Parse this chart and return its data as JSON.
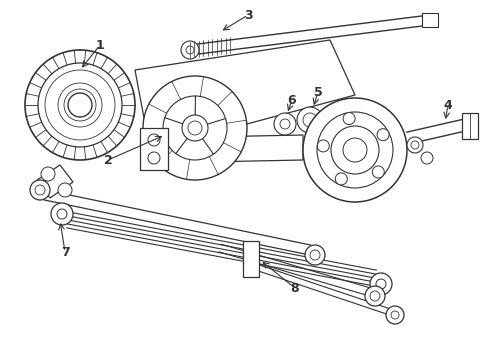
{
  "bg_color": "#ffffff",
  "line_color": "#333333",
  "lw": 1.0,
  "figsize": [
    4.9,
    3.6
  ],
  "dpi": 100
}
